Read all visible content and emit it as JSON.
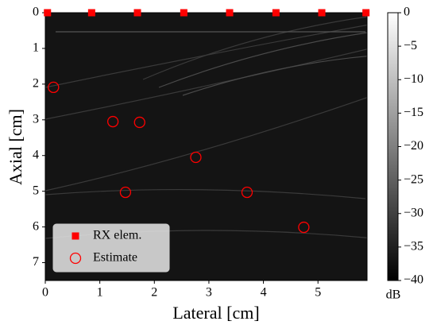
{
  "chart_data": {
    "type": "scatter",
    "x_label": "Lateral [cm]",
    "y_label": "Axial [cm]",
    "xlim": [
      0,
      5.9
    ],
    "ylim": [
      0,
      7.5
    ],
    "y_inverted": true,
    "xticks": [
      0,
      1,
      2,
      3,
      4,
      5
    ],
    "yticks": [
      0,
      1,
      2,
      3,
      4,
      5,
      6,
      7
    ],
    "legend": "lower left",
    "series": [
      {
        "name": "RX elem.",
        "color": "#ff0000",
        "marker": "square",
        "x": [
          0.04,
          0.85,
          1.69,
          2.54,
          3.38,
          4.23,
          5.07,
          5.88
        ],
        "values": [
          0,
          0,
          0,
          0,
          0,
          0,
          0,
          0
        ]
      },
      {
        "name": "Estimate",
        "color": "#ff0000",
        "marker": "circle",
        "x": [
          0.15,
          1.24,
          1.73,
          2.76,
          1.47,
          3.7,
          4.74
        ],
        "values": [
          2.09,
          3.05,
          3.07,
          4.05,
          5.03,
          5.03,
          6.01
        ]
      }
    ],
    "colorbar": {
      "label": "dB",
      "clim": [
        -40,
        0
      ],
      "ticks": [
        0,
        {
          "value": -5,
          "label": "−5"
        },
        {
          "value": -10,
          "label": "−10"
        },
        {
          "value": -15,
          "label": "−15"
        },
        {
          "value": -20,
          "label": "−20"
        },
        {
          "value": -25,
          "label": "−25"
        },
        {
          "value": -30,
          "label": "−30"
        },
        {
          "value": -35,
          "label": "−35"
        },
        {
          "value": -40,
          "label": "−40"
        }
      ]
    }
  }
}
